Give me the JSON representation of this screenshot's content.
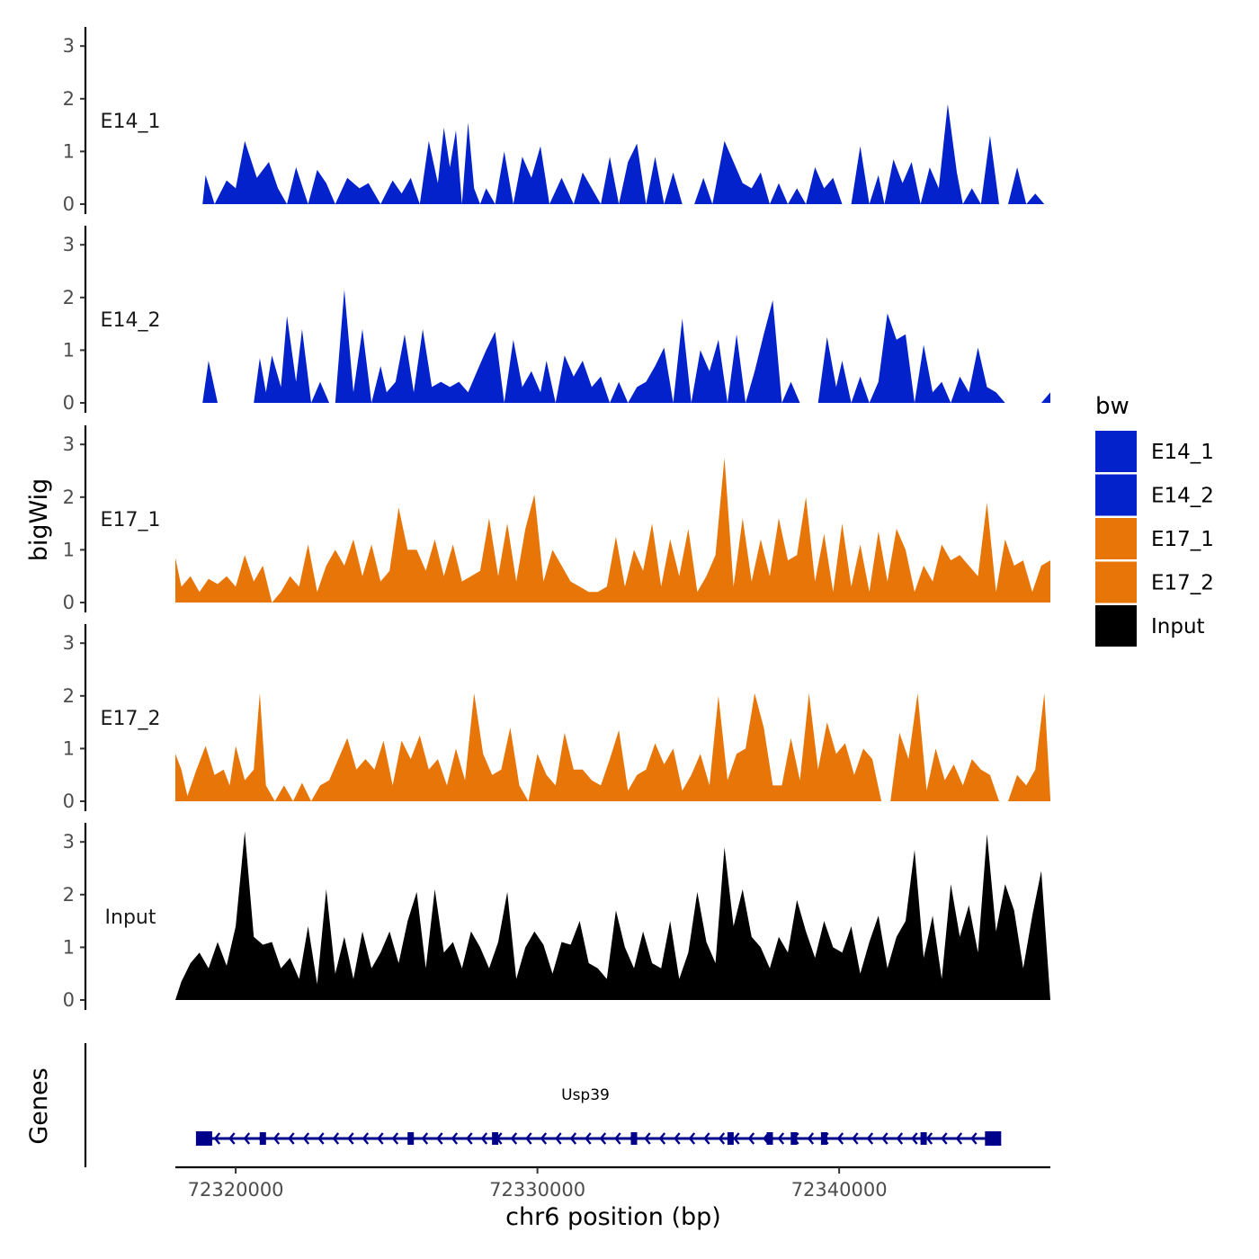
{
  "chart_data": {
    "type": "area",
    "title": "",
    "xlabel": "chr6 position (bp)",
    "ylabel": "bigWig",
    "gene_track_label": "Genes",
    "xlim": [
      72318000,
      72347000
    ],
    "x_ticks": [
      72320000,
      72330000,
      72340000
    ],
    "x_tick_labels": [
      "72320000",
      "72330000",
      "72340000"
    ],
    "ylim": [
      0,
      3.3
    ],
    "y_ticks": [
      0,
      1,
      2,
      3
    ],
    "y_tick_labels": [
      "0",
      "1",
      "2",
      "3"
    ],
    "legend": {
      "title": "bw",
      "position": "right",
      "entries": [
        {
          "label": "E14_1",
          "color": "#0322CC"
        },
        {
          "label": "E14_2",
          "color": "#0322CC"
        },
        {
          "label": "E17_1",
          "color": "#E87507"
        },
        {
          "label": "E17_2",
          "color": "#E87507"
        },
        {
          "label": "Input",
          "color": "#000000"
        }
      ]
    },
    "series": [
      {
        "name": "E14_1",
        "color": "#0322CC",
        "x": [
          72318900,
          72319000,
          72319300,
          72319700,
          72320000,
          72320300,
          72320700,
          72321100,
          72321400,
          72321700,
          72322000,
          72322400,
          72322700,
          72323000,
          72323300,
          72323700,
          72324100,
          72324400,
          72324800,
          72325200,
          72325500,
          72325800,
          72326100,
          72326400,
          72326700,
          72326900,
          72327100,
          72327300,
          72327500,
          72327700,
          72327900,
          72328100,
          72328300,
          72328600,
          72328900,
          72329200,
          72329500,
          72329800,
          72330100,
          72330400,
          72330800,
          72331200,
          72331500,
          72331800,
          72332100,
          72332400,
          72332700,
          72333000,
          72333300,
          72333600,
          72333900,
          72334200,
          72334500,
          72334800,
          72335200,
          72335500,
          72335800,
          72336200,
          72336500,
          72336800,
          72337100,
          72337400,
          72337700,
          72338000,
          72338300,
          72338600,
          72338900,
          72339200,
          72339500,
          72339800,
          72340100,
          72340400,
          72340700,
          72341000,
          72341300,
          72341500,
          72341800,
          72342100,
          72342400,
          72342700,
          72343000,
          72343300,
          72343600,
          72343900,
          72344100,
          72344400,
          72344700,
          72345000,
          72345300,
          72345600,
          72345900,
          72346200,
          72346500,
          72346800,
          72347000
        ],
        "values": [
          0.0,
          0.55,
          0.0,
          0.45,
          0.3,
          1.2,
          0.5,
          0.8,
          0.3,
          0.0,
          0.7,
          0.0,
          0.65,
          0.4,
          0.0,
          0.5,
          0.3,
          0.4,
          0.0,
          0.45,
          0.2,
          0.5,
          0.0,
          1.2,
          0.4,
          1.45,
          0.7,
          1.4,
          0.0,
          1.55,
          0.3,
          0.0,
          0.3,
          0.0,
          1.0,
          0.0,
          0.9,
          0.5,
          1.1,
          0.0,
          0.5,
          0.0,
          0.6,
          0.3,
          0.0,
          0.9,
          0.0,
          0.8,
          1.15,
          0.0,
          0.9,
          0.0,
          0.6,
          0.0,
          0.0,
          0.5,
          0.0,
          1.2,
          0.8,
          0.4,
          0.3,
          0.6,
          0.0,
          0.4,
          0.0,
          0.3,
          0.0,
          0.7,
          0.3,
          0.5,
          0.0,
          0.0,
          1.1,
          0.0,
          0.55,
          0.0,
          0.85,
          0.4,
          0.8,
          0.0,
          0.7,
          0.3,
          1.9,
          0.6,
          0.0,
          0.3,
          0.0,
          1.3,
          0.0,
          0.0,
          0.7,
          0.0,
          0.2,
          0.0,
          0.0
        ]
      },
      {
        "name": "E14_2",
        "color": "#0322CC",
        "x": [
          72318900,
          72319100,
          72319400,
          72319700,
          72320000,
          72320300,
          72320600,
          72320800,
          72321000,
          72321200,
          72321500,
          72321700,
          72322000,
          72322200,
          72322500,
          72322800,
          72323100,
          72323300,
          72323600,
          72323900,
          72324200,
          72324500,
          72324800,
          72325000,
          72325300,
          72325600,
          72325900,
          72326200,
          72326500,
          72326800,
          72327100,
          72327400,
          72327700,
          72328000,
          72328300,
          72328600,
          72328900,
          72329200,
          72329500,
          72329800,
          72330100,
          72330300,
          72330600,
          72330900,
          72331200,
          72331500,
          72331800,
          72332100,
          72332400,
          72332700,
          72333000,
          72333300,
          72333600,
          72333900,
          72334200,
          72334500,
          72334800,
          72335100,
          72335400,
          72335700,
          72336000,
          72336300,
          72336600,
          72336900,
          72337200,
          72337500,
          72337800,
          72338100,
          72338400,
          72338700,
          72339000,
          72339300,
          72339600,
          72339900,
          72340100,
          72340400,
          72340700,
          72341000,
          72341300,
          72341600,
          72341900,
          72342200,
          72342500,
          72342800,
          72343100,
          72343400,
          72343700,
          72344000,
          72344300,
          72344600,
          72344900,
          72345200,
          72345500,
          72345800,
          72346100,
          72346400,
          72346700,
          72347000
        ],
        "values": [
          0.0,
          0.8,
          0.0,
          0.0,
          0.0,
          0.0,
          0.0,
          0.85,
          0.2,
          0.9,
          0.3,
          1.65,
          0.4,
          1.4,
          0.0,
          0.4,
          0.0,
          0.0,
          2.15,
          0.2,
          1.4,
          0.0,
          0.7,
          0.2,
          0.4,
          1.3,
          0.2,
          1.4,
          0.3,
          0.4,
          0.3,
          0.4,
          0.2,
          0.6,
          1.0,
          1.35,
          0.0,
          1.2,
          0.3,
          0.6,
          0.2,
          0.8,
          0.0,
          0.9,
          0.5,
          0.8,
          0.3,
          0.5,
          0.0,
          0.4,
          0.0,
          0.3,
          0.4,
          0.7,
          1.05,
          0.0,
          1.6,
          0.0,
          1.0,
          0.6,
          1.2,
          0.0,
          1.3,
          0.0,
          0.6,
          1.3,
          1.95,
          0.0,
          0.4,
          0.0,
          0.0,
          0.0,
          1.25,
          0.3,
          0.8,
          0.0,
          0.5,
          0.0,
          0.4,
          1.7,
          1.2,
          1.3,
          0.0,
          1.1,
          0.2,
          0.4,
          0.0,
          0.5,
          0.2,
          1.05,
          0.3,
          0.2,
          0.0,
          0.0,
          0.0,
          0.0,
          0.0,
          0.2
        ]
      },
      {
        "name": "E17_1",
        "color": "#E87507",
        "x": [
          72318000,
          72318200,
          72318500,
          72318800,
          72319100,
          72319400,
          72319700,
          72320000,
          72320300,
          72320600,
          72320900,
          72321200,
          72321500,
          72321800,
          72322100,
          72322400,
          72322700,
          72323000,
          72323300,
          72323600,
          72323900,
          72324200,
          72324500,
          72324800,
          72325100,
          72325400,
          72325700,
          72326000,
          72326300,
          72326600,
          72326900,
          72327200,
          72327500,
          72327800,
          72328100,
          72328400,
          72328700,
          72329000,
          72329300,
          72329600,
          72329900,
          72330200,
          72330500,
          72330800,
          72331100,
          72331400,
          72331700,
          72332000,
          72332300,
          72332600,
          72332900,
          72333200,
          72333500,
          72333800,
          72334100,
          72334400,
          72334700,
          72335000,
          72335300,
          72335600,
          72335900,
          72336200,
          72336500,
          72336800,
          72337100,
          72337400,
          72337700,
          72338000,
          72338300,
          72338600,
          72338900,
          72339200,
          72339500,
          72339800,
          72340100,
          72340400,
          72340700,
          72341000,
          72341300,
          72341600,
          72341900,
          72342200,
          72342500,
          72342800,
          72343100,
          72343400,
          72343700,
          72344000,
          72344300,
          72344600,
          72344900,
          72345200,
          72345500,
          72345800,
          72346100,
          72346400,
          72346700,
          72347000
        ],
        "values": [
          0.85,
          0.3,
          0.5,
          0.2,
          0.45,
          0.35,
          0.5,
          0.3,
          0.9,
          0.4,
          0.7,
          0.0,
          0.2,
          0.5,
          0.3,
          1.1,
          0.2,
          0.7,
          1.0,
          0.7,
          1.2,
          0.5,
          1.1,
          0.4,
          0.6,
          1.8,
          1.0,
          1.0,
          0.6,
          1.2,
          0.5,
          1.1,
          0.4,
          0.5,
          0.6,
          1.6,
          0.5,
          1.5,
          0.4,
          1.4,
          2.05,
          0.4,
          1.0,
          0.7,
          0.4,
          0.3,
          0.2,
          0.2,
          0.3,
          1.25,
          0.3,
          1.0,
          0.6,
          1.5,
          0.3,
          1.2,
          0.5,
          1.4,
          0.2,
          0.5,
          0.9,
          2.75,
          0.3,
          1.6,
          0.4,
          1.2,
          0.5,
          1.6,
          0.8,
          0.9,
          2.0,
          0.4,
          1.3,
          0.2,
          1.5,
          0.3,
          1.1,
          0.2,
          1.35,
          0.4,
          1.4,
          1.0,
          0.2,
          0.7,
          0.4,
          1.1,
          0.8,
          0.9,
          0.7,
          0.5,
          1.9,
          0.2,
          1.2,
          0.7,
          0.8,
          0.2,
          0.7,
          0.8
        ]
      },
      {
        "name": "E17_2",
        "color": "#E87507",
        "x": [
          72318000,
          72318200,
          72318400,
          72318700,
          72319000,
          72319300,
          72319600,
          72319800,
          72320000,
          72320300,
          72320600,
          72320800,
          72321000,
          72321300,
          72321600,
          72321900,
          72322200,
          72322500,
          72322800,
          72323100,
          72323400,
          72323700,
          72324000,
          72324300,
          72324600,
          72324900,
          72325200,
          72325500,
          72325800,
          72326100,
          72326400,
          72326700,
          72327000,
          72327300,
          72327600,
          72327900,
          72328200,
          72328500,
          72328800,
          72329100,
          72329400,
          72329700,
          72330000,
          72330300,
          72330600,
          72330900,
          72331200,
          72331500,
          72331800,
          72332100,
          72332400,
          72332700,
          72333000,
          72333300,
          72333600,
          72333900,
          72334200,
          72334500,
          72334800,
          72335100,
          72335400,
          72335700,
          72336000,
          72336300,
          72336600,
          72336900,
          72337200,
          72337500,
          72337800,
          72338100,
          72338400,
          72338700,
          72339000,
          72339300,
          72339600,
          72339900,
          72340200,
          72340500,
          72340800,
          72341100,
          72341400,
          72341700,
          72342000,
          72342300,
          72342600,
          72342900,
          72343200,
          72343500,
          72343800,
          72344100,
          72344400,
          72344700,
          72345000,
          72345300,
          72345600,
          72345900,
          72346200,
          72346500,
          72346800,
          72347000
        ],
        "values": [
          0.9,
          0.6,
          0.1,
          0.6,
          1.05,
          0.5,
          0.6,
          0.3,
          1.05,
          0.4,
          0.6,
          2.05,
          0.3,
          0.0,
          0.3,
          0.0,
          0.35,
          0.0,
          0.3,
          0.4,
          0.8,
          1.2,
          0.6,
          0.8,
          0.6,
          1.15,
          0.3,
          1.15,
          0.8,
          1.25,
          0.6,
          0.8,
          0.3,
          1.0,
          0.4,
          2.05,
          0.9,
          0.5,
          0.6,
          1.4,
          0.3,
          0.0,
          0.9,
          0.5,
          0.3,
          1.3,
          0.6,
          0.6,
          0.4,
          0.3,
          0.8,
          1.35,
          0.2,
          0.5,
          0.6,
          1.1,
          0.7,
          1.0,
          0.2,
          0.5,
          0.9,
          0.3,
          2.0,
          0.4,
          0.9,
          1.0,
          2.05,
          1.4,
          0.3,
          0.3,
          1.2,
          0.4,
          2.05,
          0.6,
          1.5,
          0.9,
          1.1,
          0.5,
          1.0,
          0.8,
          0.0,
          0.0,
          1.3,
          0.8,
          2.05,
          0.2,
          1.0,
          0.4,
          0.7,
          0.3,
          0.8,
          0.6,
          0.5,
          0.0,
          0.0,
          0.5,
          0.3,
          0.6,
          2.05,
          0.05
        ]
      },
      {
        "name": "Input",
        "color": "#000000",
        "x": [
          72318000,
          72318200,
          72318500,
          72318800,
          72319100,
          72319400,
          72319700,
          72320000,
          72320300,
          72320600,
          72320900,
          72321200,
          72321500,
          72321800,
          72322100,
          72322400,
          72322700,
          72323000,
          72323300,
          72323600,
          72323900,
          72324200,
          72324500,
          72324800,
          72325100,
          72325400,
          72325700,
          72326000,
          72326300,
          72326600,
          72326900,
          72327200,
          72327500,
          72327800,
          72328100,
          72328400,
          72328700,
          72329000,
          72329300,
          72329600,
          72329900,
          72330200,
          72330500,
          72330800,
          72331100,
          72331400,
          72331700,
          72332000,
          72332300,
          72332600,
          72332900,
          72333200,
          72333500,
          72333800,
          72334100,
          72334400,
          72334700,
          72335000,
          72335300,
          72335600,
          72335900,
          72336200,
          72336500,
          72336800,
          72337100,
          72337400,
          72337700,
          72338000,
          72338300,
          72338600,
          72338900,
          72339200,
          72339500,
          72339800,
          72340100,
          72340400,
          72340700,
          72341000,
          72341300,
          72341600,
          72341900,
          72342200,
          72342500,
          72342800,
          72343100,
          72343400,
          72343700,
          72344000,
          72344300,
          72344600,
          72344900,
          72345200,
          72345500,
          72345800,
          72346100,
          72346400,
          72346700,
          72347000
        ],
        "values": [
          0.0,
          0.35,
          0.7,
          0.9,
          0.6,
          1.1,
          0.65,
          1.4,
          3.2,
          1.2,
          1.05,
          1.1,
          0.6,
          0.8,
          0.4,
          1.4,
          0.3,
          2.1,
          0.5,
          1.2,
          0.4,
          1.3,
          0.6,
          0.9,
          1.3,
          0.7,
          1.5,
          2.05,
          0.6,
          2.1,
          0.9,
          1.1,
          0.6,
          1.3,
          1.0,
          0.6,
          1.1,
          2.05,
          0.4,
          1.0,
          1.3,
          1.05,
          0.5,
          1.1,
          1.05,
          1.5,
          0.7,
          0.6,
          0.4,
          1.7,
          1.0,
          0.6,
          1.3,
          0.7,
          0.6,
          1.5,
          0.4,
          0.9,
          2.05,
          1.1,
          0.7,
          2.9,
          1.4,
          2.1,
          1.2,
          1.0,
          0.6,
          1.2,
          0.9,
          1.9,
          1.3,
          0.8,
          1.5,
          1.0,
          0.9,
          1.4,
          0.5,
          1.1,
          1.6,
          0.6,
          1.2,
          1.5,
          2.85,
          0.8,
          1.6,
          0.4,
          2.2,
          1.2,
          1.8,
          0.9,
          3.15,
          1.3,
          2.2,
          1.7,
          0.6,
          1.6,
          2.45,
          0.0
        ]
      }
    ],
    "gene": {
      "name": "Usp39",
      "color": "#00008B",
      "start": 72318900,
      "end": 72345100,
      "strand": "-",
      "exons": [
        72318950,
        72320900,
        72325800,
        72328600,
        72333200,
        72336400,
        72337700,
        72338500,
        72339500,
        72342800,
        72345100
      ]
    }
  }
}
